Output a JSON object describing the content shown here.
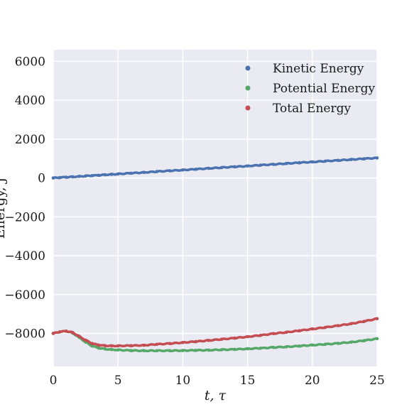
{
  "chart_data": {
    "type": "scatter",
    "title": "",
    "xlabel": "t, τ",
    "ylabel": "Energy, J",
    "xlim": [
      0,
      25
    ],
    "ylim": [
      -9700,
      6600
    ],
    "xticks": [
      0,
      5,
      10,
      15,
      20,
      25
    ],
    "yticks": [
      -8000,
      -6000,
      -4000,
      -2000,
      0,
      2000,
      4000,
      6000
    ],
    "xtick_labels": [
      "0",
      "5",
      "10",
      "15",
      "20",
      "25"
    ],
    "ytick_labels": [
      "−8000",
      "−6000",
      "−4000",
      "−2000",
      "0",
      "2000",
      "4000",
      "6000"
    ],
    "grid": true,
    "legend_position": "top-right",
    "x": [
      0,
      0.5,
      1,
      1.5,
      2,
      2.5,
      3,
      3.5,
      4,
      4.5,
      5,
      6,
      7,
      8,
      9,
      10,
      11,
      12,
      13,
      14,
      15,
      16,
      17,
      18,
      19,
      20,
      21,
      22,
      23,
      24,
      25
    ],
    "series": [
      {
        "name": "Kinetic Energy",
        "color": "#4c72b0",
        "values": [
          0,
          20,
          40,
          60,
          80,
          100,
          120,
          140,
          165,
          185,
          205,
          245,
          285,
          330,
          370,
          410,
          450,
          495,
          535,
          575,
          615,
          660,
          700,
          745,
          785,
          825,
          865,
          905,
          950,
          990,
          1030
        ]
      },
      {
        "name": "Potential Energy",
        "color": "#55a868",
        "values": [
          -8000,
          -7920,
          -7880,
          -7980,
          -8200,
          -8450,
          -8650,
          -8750,
          -8800,
          -8830,
          -8850,
          -8880,
          -8890,
          -8890,
          -8890,
          -8880,
          -8870,
          -8860,
          -8840,
          -8820,
          -8790,
          -8760,
          -8720,
          -8690,
          -8650,
          -8600,
          -8560,
          -8510,
          -8450,
          -8370,
          -8270
        ]
      },
      {
        "name": "Total Energy",
        "color": "#c44e52",
        "values": [
          -8000,
          -7920,
          -7880,
          -7950,
          -8150,
          -8350,
          -8520,
          -8600,
          -8630,
          -8640,
          -8640,
          -8630,
          -8610,
          -8560,
          -8520,
          -8470,
          -8420,
          -8360,
          -8300,
          -8240,
          -8170,
          -8100,
          -8010,
          -7940,
          -7860,
          -7770,
          -7690,
          -7600,
          -7500,
          -7380,
          -7240
        ]
      }
    ]
  }
}
